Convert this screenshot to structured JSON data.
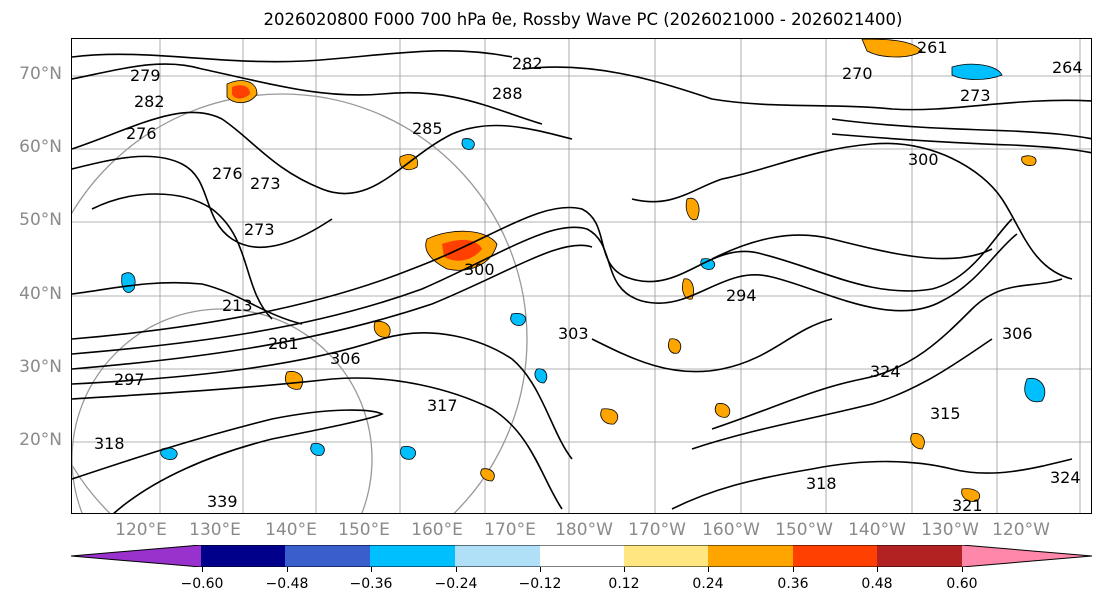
{
  "title": "2026020800 F000 700 hPa θe, Rossby Wave PC (2026021000 - 2026021400)",
  "latitude_labels": [
    "70°N",
    "60°N",
    "50°N",
    "40°N",
    "30°N",
    "20°N"
  ],
  "longitude_labels": [
    "120°E",
    "130°E",
    "140°E",
    "150°E",
    "160°E",
    "170°E",
    "180°W",
    "170°W",
    "160°W",
    "150°W",
    "140°W",
    "130°W",
    "120°W"
  ],
  "contour_labels": [
    "279",
    "282",
    "276",
    "273",
    "273",
    "276",
    "213",
    "281",
    "297",
    "306",
    "318",
    "339",
    "300",
    "294",
    "303",
    "315",
    "317",
    "324",
    "288",
    "285",
    "282",
    "270",
    "261",
    "273",
    "264",
    "300",
    "306",
    "318",
    "324",
    "321"
  ],
  "colorbar": {
    "ticks": [
      "−0.60",
      "−0.48",
      "−0.36",
      "−0.24",
      "−0.12",
      "0.12",
      "0.24",
      "0.36",
      "0.48",
      "0.60"
    ],
    "colors": [
      "#9932cc",
      "#00008b",
      "#3a5fcd",
      "#00bfff",
      "#b0e0f8",
      "#ffffff",
      "#ffe680",
      "#ffa500",
      "#ff4000",
      "#b22222",
      "#ff88aa"
    ]
  }
}
